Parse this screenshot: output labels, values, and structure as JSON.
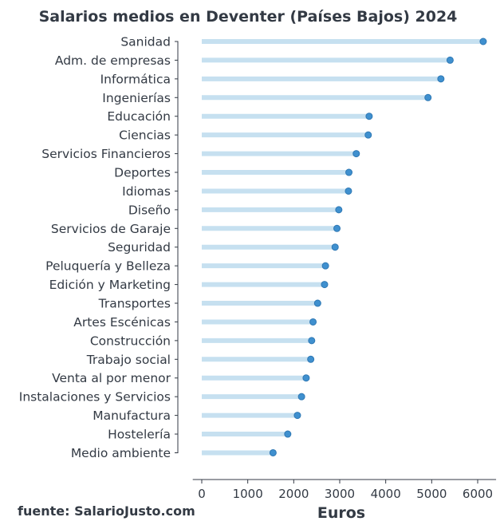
{
  "chart_data": {
    "type": "lollipop",
    "title": "Salarios medios en Deventer (Países Bajos) 2024",
    "xlabel": "Euros",
    "source": "fuente: SalarioJusto.com",
    "xlim": [
      -300,
      6400
    ],
    "xticks": [
      0,
      1000,
      2000,
      3000,
      4000,
      5000,
      6000
    ],
    "categories": [
      "Sanidad",
      "Adm. de empresas",
      "Informática",
      "Ingenierías",
      "Educación",
      "Ciencias",
      "Servicios Financieros",
      "Deportes",
      "Idiomas",
      "Diseño",
      "Servicios de Garaje",
      "Seguridad",
      "Peluquería y Belleza",
      "Edición y Marketing",
      "Transportes",
      "Artes Escénicas",
      "Construcción",
      "Trabajo social",
      "Venta al por menor",
      "Instalaciones y Servicios",
      "Manufactura",
      "Hostelería",
      "Medio ambiente"
    ],
    "values": [
      6120,
      5400,
      5200,
      4920,
      3640,
      3620,
      3360,
      3200,
      3190,
      2980,
      2940,
      2900,
      2690,
      2670,
      2520,
      2420,
      2390,
      2370,
      2270,
      2170,
      2080,
      1870,
      1550
    ],
    "colors": {
      "stem": "#c6e0f0",
      "marker": "#3f90cf",
      "text": "#333a44"
    },
    "grid": false
  }
}
